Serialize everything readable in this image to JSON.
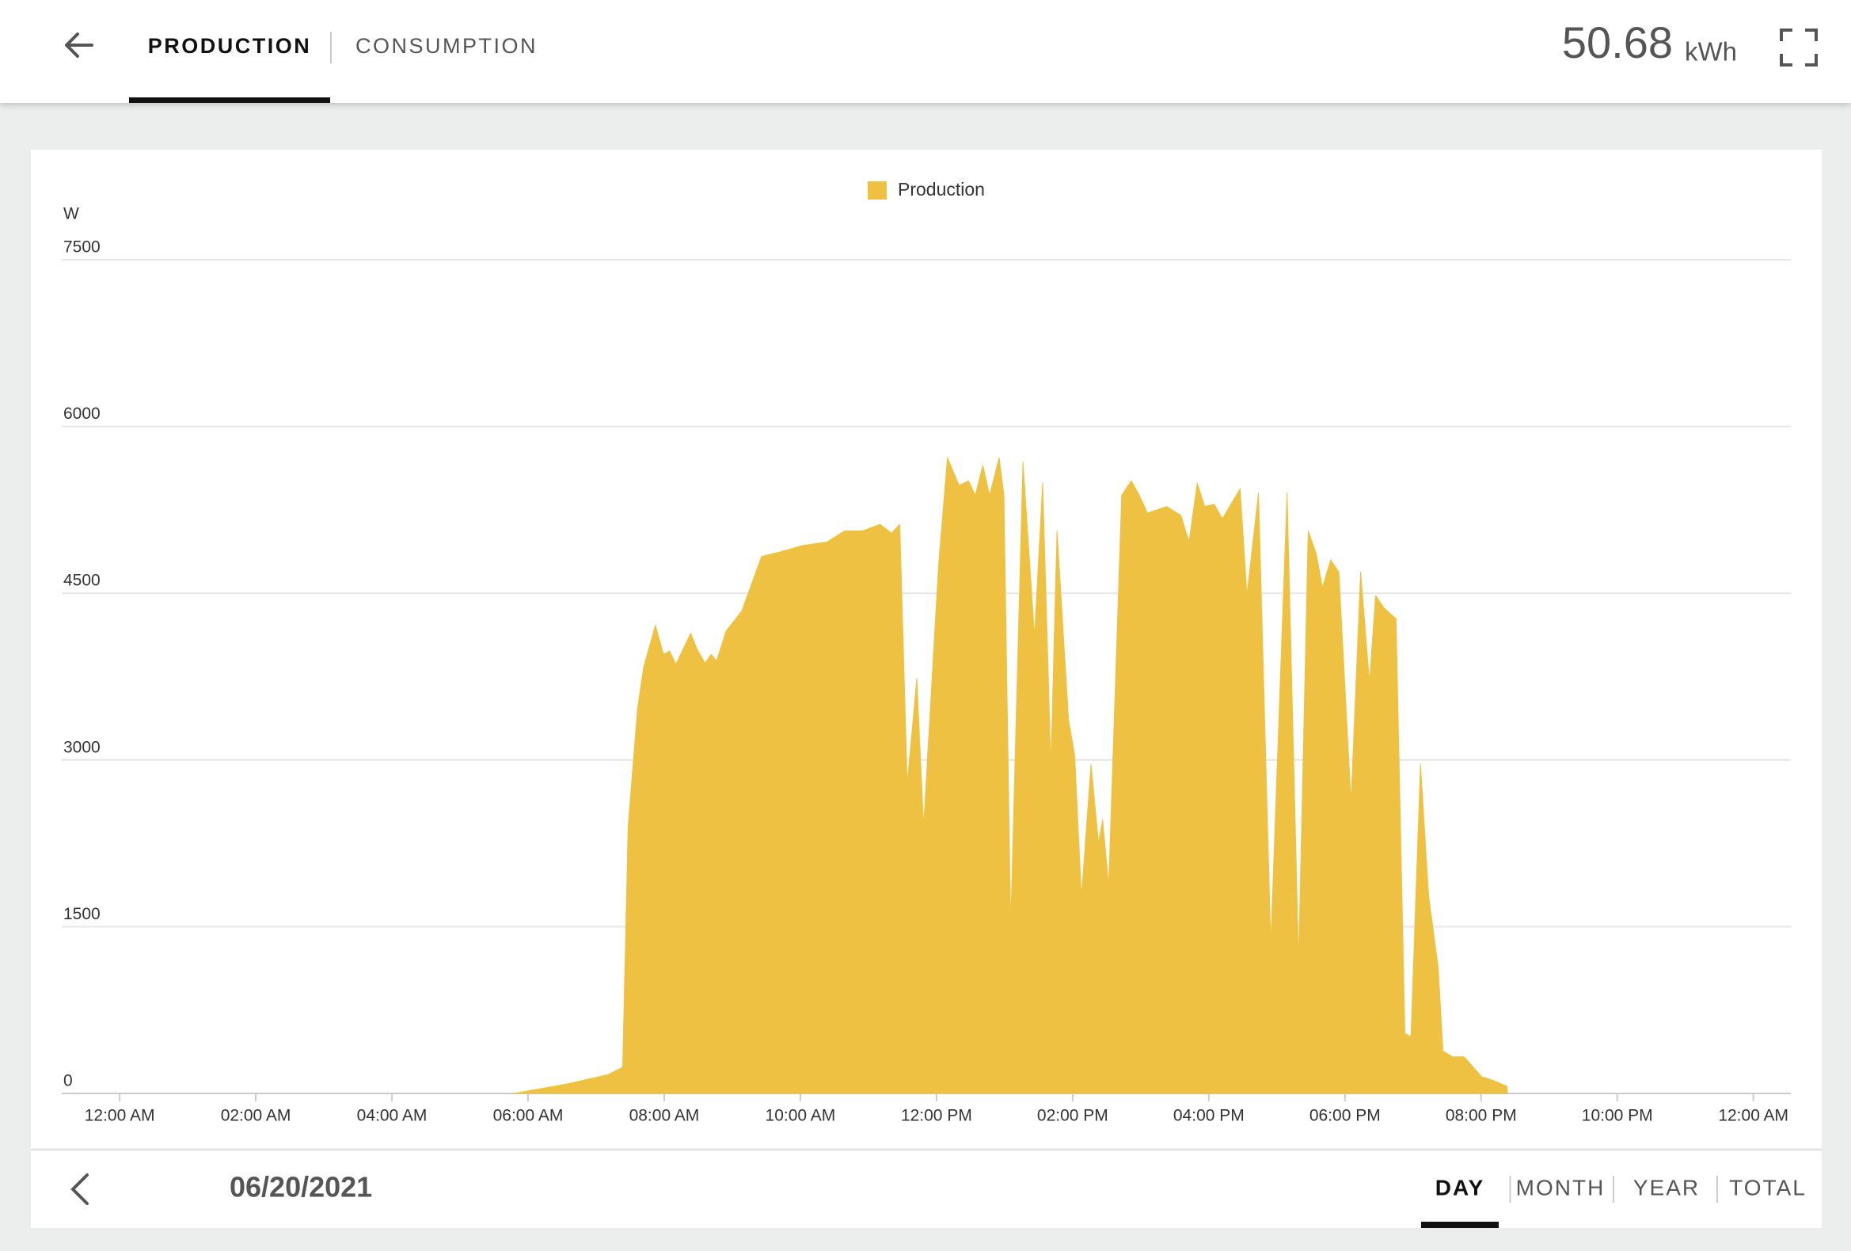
{
  "header": {
    "tabs": [
      "PRODUCTION",
      "CONSUMPTION"
    ],
    "selected_tab": 0,
    "total": "50.68",
    "unit": "kWh"
  },
  "chart_data": {
    "type": "area",
    "y_label": "W",
    "series": [
      {
        "name": "Production",
        "color": "#eec142",
        "values": [
          0,
          85,
          170,
          235,
          2400,
          3470,
          3840,
          4210,
          3950,
          3980,
          3860,
          4140,
          4000,
          3870,
          3950,
          3890,
          4160,
          4340,
          4830,
          4870,
          4930,
          4960,
          5060,
          5060,
          5120,
          5040,
          5120,
          2780,
          3730,
          2400,
          4750,
          5720,
          5470,
          5510,
          5380,
          5650,
          5380,
          5720,
          5380,
          1500,
          5680,
          4110,
          5490,
          2940,
          5060,
          3360,
          3040,
          1770,
          2960,
          2250,
          2460,
          1870,
          5380,
          5510,
          5380,
          5220,
          5280,
          5200,
          4960,
          5490,
          5280,
          5300,
          5170,
          5440,
          4480,
          5400,
          1340,
          5400,
          1180,
          5060,
          4850,
          4550,
          4800,
          4690,
          2620,
          4690,
          3700,
          4480,
          4370,
          4270,
          540,
          510,
          2960,
          1770,
          1130,
          380,
          330,
          330,
          150,
          117,
          64,
          0
        ]
      }
    ],
    "x": [
      5.79,
      6.57,
      7.18,
      7.39,
      7.47,
      7.61,
      7.7,
      7.87,
      7.99,
      8.08,
      8.17,
      8.39,
      8.48,
      8.6,
      8.69,
      8.77,
      8.91,
      9.14,
      9.43,
      9.69,
      10.04,
      10.39,
      10.65,
      10.91,
      11.17,
      11.34,
      11.46,
      11.57,
      11.71,
      11.81,
      12.03,
      12.16,
      12.33,
      12.47,
      12.57,
      12.68,
      12.78,
      12.92,
      12.99,
      13.09,
      13.27,
      13.44,
      13.56,
      13.68,
      13.77,
      13.94,
      14.03,
      14.13,
      14.27,
      14.38,
      14.44,
      14.53,
      14.72,
      14.86,
      14.98,
      15.1,
      15.38,
      15.59,
      15.71,
      15.83,
      15.94,
      16.08,
      16.2,
      16.46,
      16.56,
      16.73,
      16.91,
      17.15,
      17.32,
      17.46,
      17.58,
      17.67,
      17.79,
      17.91,
      18.09,
      18.23,
      18.36,
      18.45,
      18.57,
      18.75,
      18.88,
      18.97,
      19.11,
      19.23,
      19.37,
      19.44,
      19.58,
      19.75,
      20.01,
      20.18,
      20.38,
      20.39
    ],
    "xlim": [
      -0.85,
      24.55
    ],
    "xticks": [
      {
        "value": 0,
        "label": "12:00 AM"
      },
      {
        "value": 2,
        "label": "02:00 AM"
      },
      {
        "value": 4,
        "label": "04:00 AM"
      },
      {
        "value": 6,
        "label": "06:00 AM"
      },
      {
        "value": 8,
        "label": "08:00 AM"
      },
      {
        "value": 10,
        "label": "10:00 AM"
      },
      {
        "value": 12,
        "label": "12:00 PM"
      },
      {
        "value": 14,
        "label": "02:00 PM"
      },
      {
        "value": 16,
        "label": "04:00 PM"
      },
      {
        "value": 18,
        "label": "06:00 PM"
      },
      {
        "value": 20,
        "label": "08:00 PM"
      },
      {
        "value": 22,
        "label": "10:00 PM"
      },
      {
        "value": 24,
        "label": "12:00 AM"
      }
    ],
    "ylim": [
      0,
      7500
    ],
    "yticks": [
      0,
      1500,
      3000,
      4500,
      6000,
      7500
    ],
    "grid": true
  },
  "footer": {
    "date": "06/20/2021",
    "periods": [
      "DAY",
      "MONTH",
      "YEAR",
      "TOTAL"
    ],
    "selected_period": 0
  }
}
